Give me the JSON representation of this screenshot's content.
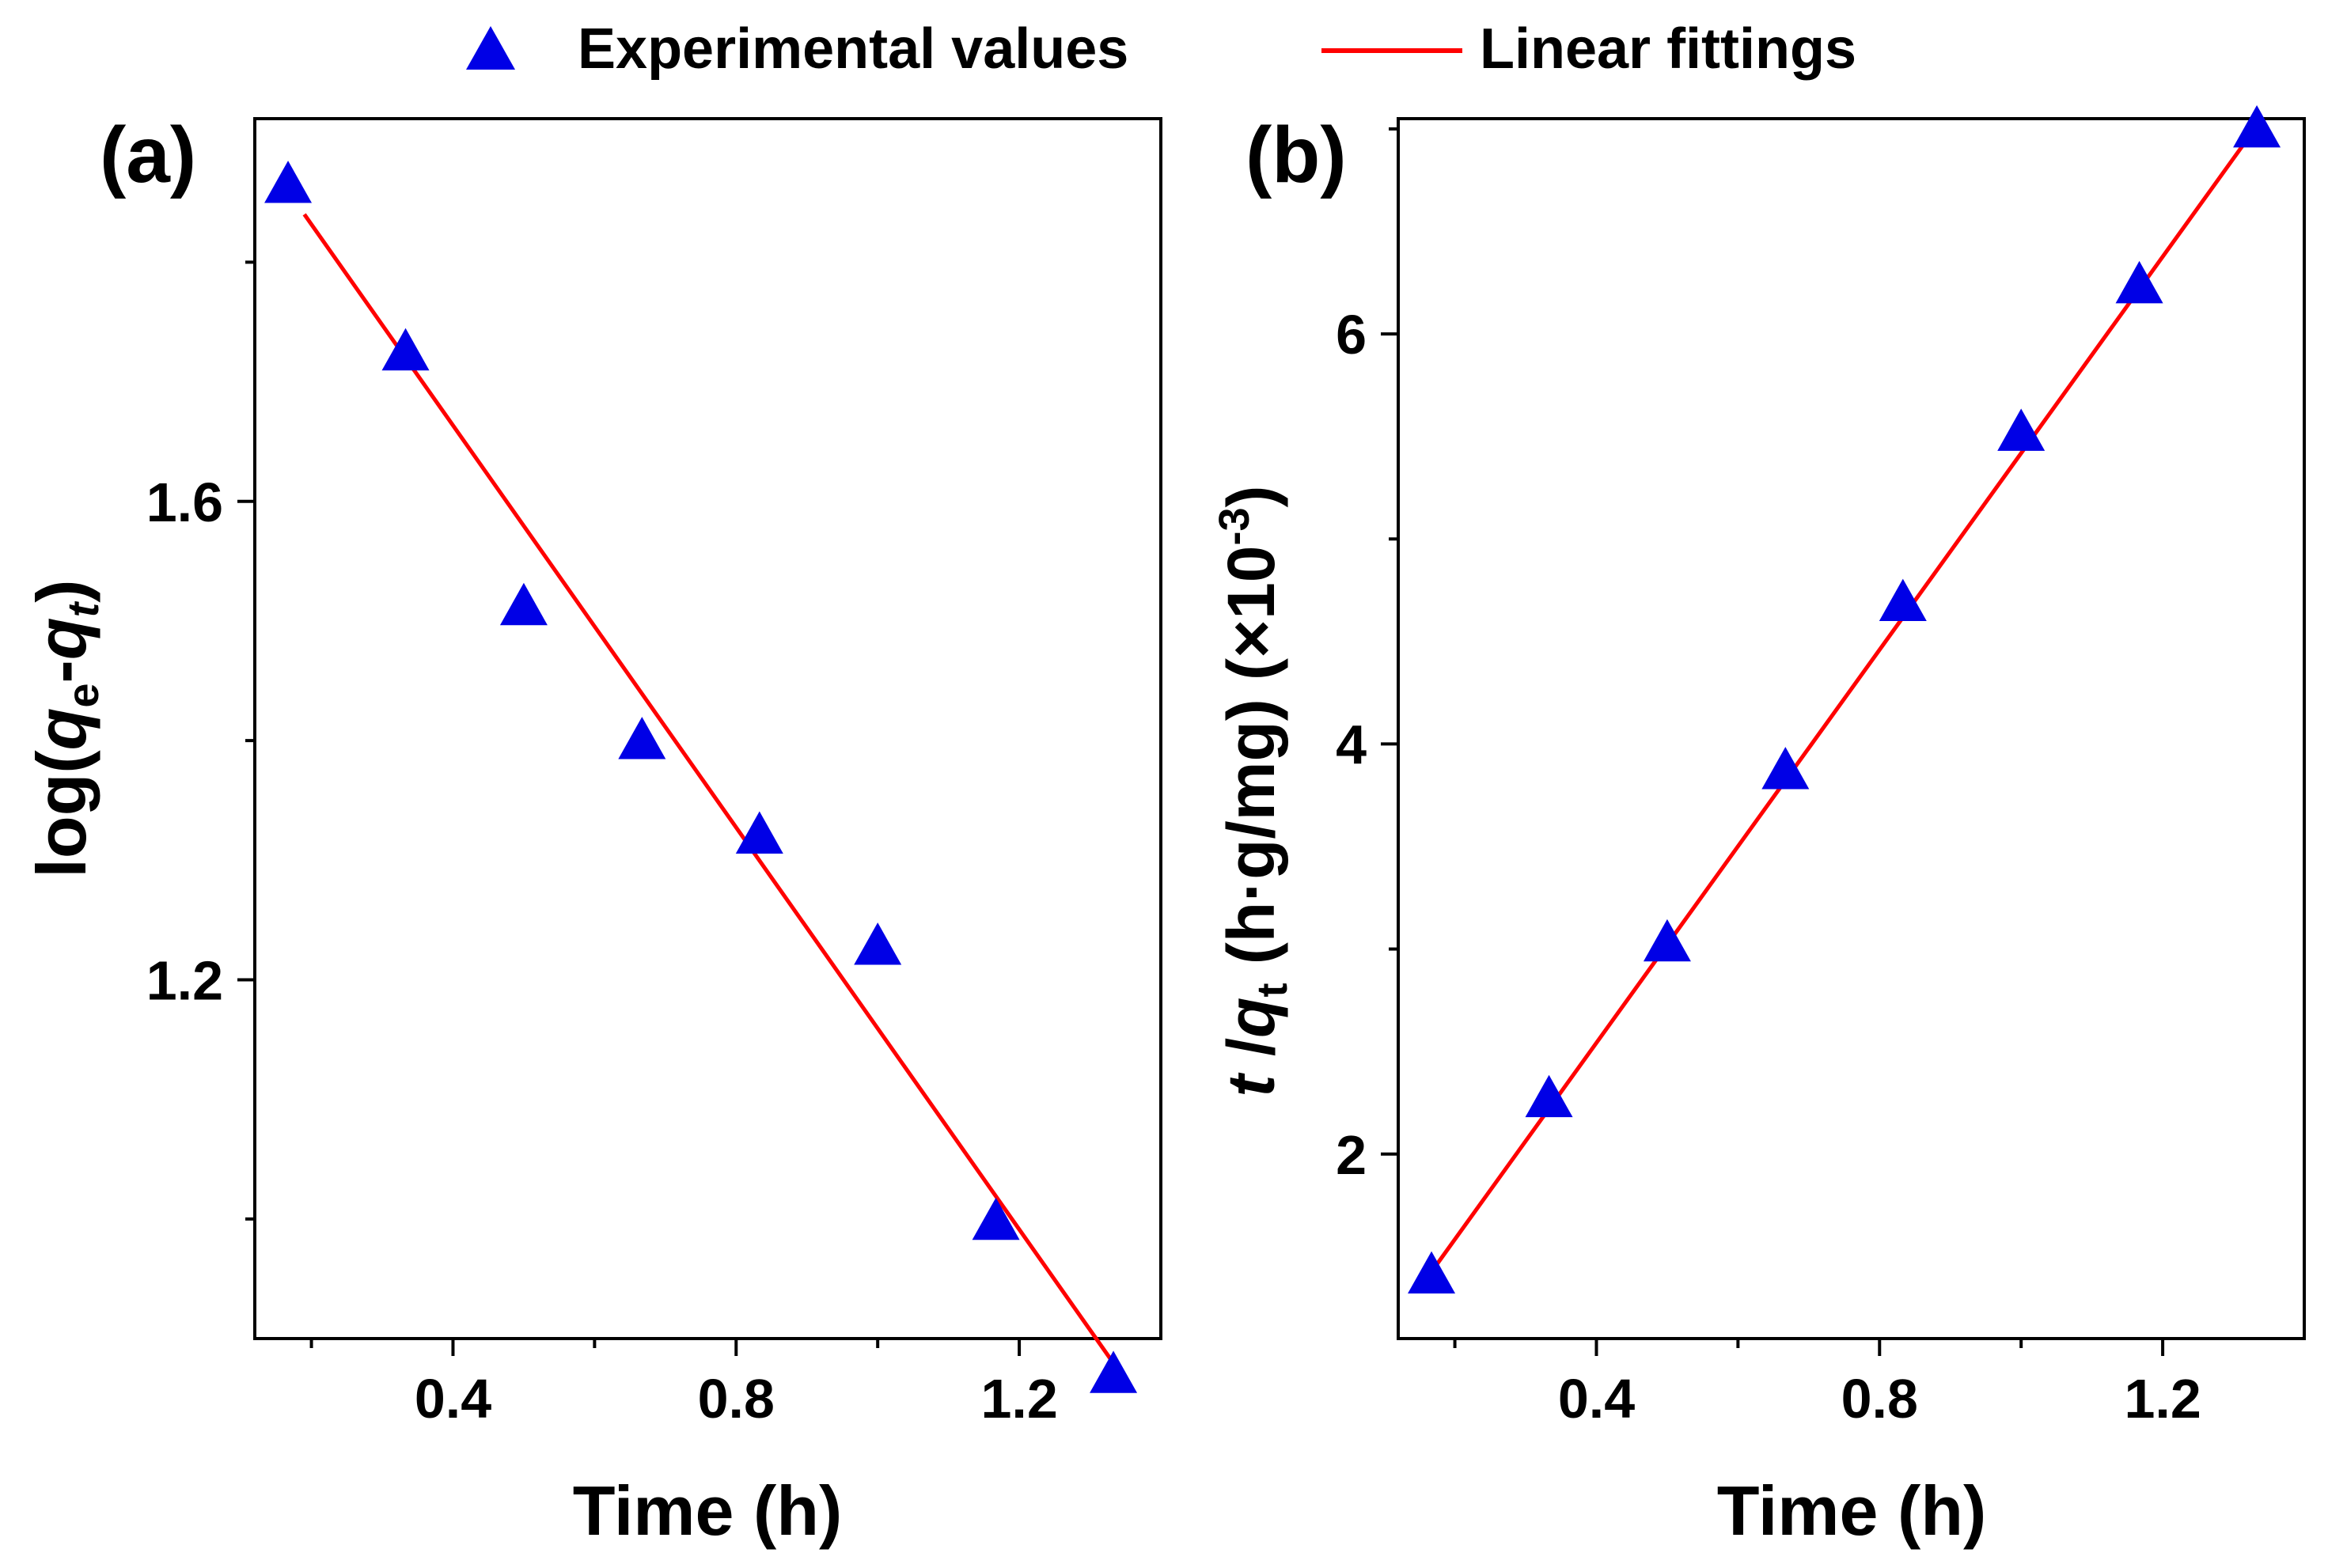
{
  "legend": {
    "experimental": "Experimental values",
    "fit": "Linear fittings"
  },
  "colors": {
    "marker": "#0000e6",
    "fit_line": "#ff0000",
    "axes": "#000000"
  },
  "chart_data": [
    {
      "type": "scatter",
      "panel_label": "(a)",
      "xlabel": "Time (h)",
      "ylabel_parts": {
        "prefix": "log(",
        "q1": "q",
        "sub1": "e",
        "mid": "-",
        "q2": "q",
        "sub2": "t",
        "suffix": ")"
      },
      "xlim": [
        0.12,
        1.4
      ],
      "ylim": [
        0.9,
        1.92
      ],
      "x_ticks": [
        0.4,
        0.8,
        1.2
      ],
      "x_tick_labels": [
        "0.4",
        "0.8",
        "1.2"
      ],
      "x_minor_ticks": [
        0.2,
        0.6,
        1.0
      ],
      "y_ticks": [
        1.2,
        1.6
      ],
      "y_tick_labels": [
        "1.2",
        "1.6"
      ],
      "y_minor_ticks": [
        1.0,
        1.4,
        1.8
      ],
      "series": [
        {
          "kind": "markers",
          "x": [
            0.167,
            0.333,
            0.5,
            0.667,
            0.833,
            1.0,
            1.167,
            1.333
          ],
          "y": [
            1.865,
            1.725,
            1.512,
            1.4,
            1.321,
            1.228,
            0.998,
            0.87
          ]
        },
        {
          "kind": "line",
          "x": [
            0.19,
            1.33
          ],
          "y": [
            1.84,
            0.882
          ]
        }
      ],
      "legend_position": "top"
    },
    {
      "type": "scatter",
      "panel_label": "(b)",
      "xlabel": "Time (h)",
      "ylabel_parts": {
        "t": "t",
        "slash": " /",
        "q": "q",
        "sub": "t",
        "units": " (h·g/mg) (×10",
        "sup": "-3",
        "close": ")"
      },
      "xlim": [
        0.12,
        1.4
      ],
      "ylim": [
        1.1,
        7.05
      ],
      "x_ticks": [
        0.4,
        0.8,
        1.2
      ],
      "x_tick_labels": [
        "0.4",
        "0.8",
        "1.2"
      ],
      "x_minor_ticks": [
        0.2,
        0.6,
        1.0
      ],
      "y_ticks": [
        2,
        4,
        6
      ],
      "y_tick_labels": [
        "2",
        "4",
        "6"
      ],
      "y_minor_ticks": [
        3,
        5,
        7
      ],
      "series": [
        {
          "kind": "markers",
          "x": [
            0.167,
            0.333,
            0.5,
            0.667,
            0.833,
            1.0,
            1.167,
            1.333
          ],
          "y": [
            1.41,
            2.27,
            3.03,
            3.87,
            4.69,
            5.52,
            6.24,
            7.0
          ]
        },
        {
          "kind": "line",
          "x": [
            0.17,
            1.33
          ],
          "y": [
            1.44,
            7.0
          ]
        }
      ],
      "legend_position": "top"
    }
  ]
}
